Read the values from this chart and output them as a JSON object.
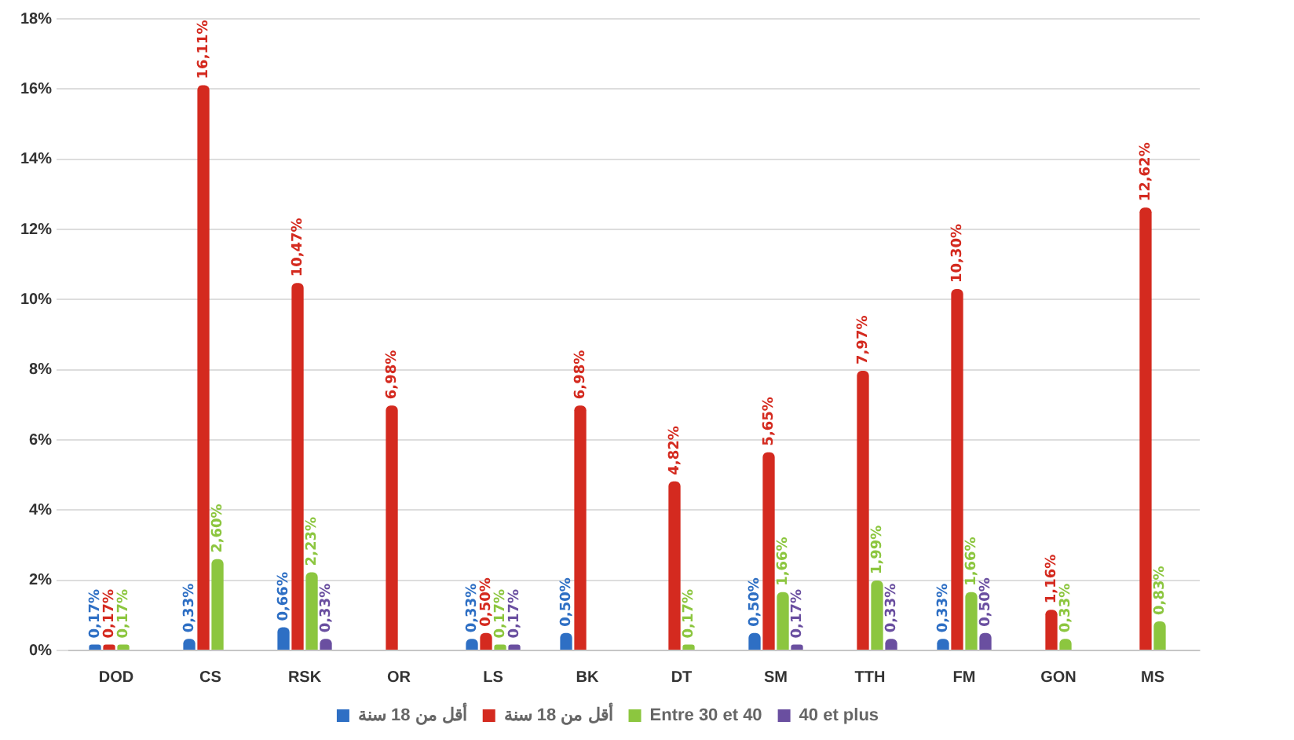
{
  "chart_data": {
    "type": "bar",
    "categories": [
      "DOD",
      "CS",
      "RSK",
      "OR",
      "LS",
      "BK",
      "DT",
      "SM",
      "TTH",
      "FM",
      "GON",
      "MS"
    ],
    "series": [
      {
        "name": "أقل من 18 سنة",
        "color": "#2e6fc4",
        "values": [
          0.17,
          0.33,
          0.66,
          null,
          0.33,
          0.5,
          null,
          0.5,
          null,
          0.33,
          null,
          null
        ],
        "value_labels": [
          "0,17%",
          "0,33%",
          "0,66%",
          null,
          "0,33%",
          "0,50%",
          null,
          "0,50%",
          null,
          "0,33%",
          null,
          null
        ]
      },
      {
        "name": "أقل من 18 سنة",
        "color": "#d42a1f",
        "values": [
          0.17,
          16.11,
          10.47,
          6.98,
          0.5,
          6.98,
          4.82,
          5.65,
          7.97,
          10.3,
          1.16,
          12.62
        ],
        "value_labels": [
          "0,17%",
          "16,11%",
          "10,47%",
          "6,98%",
          "0,50%",
          "6,98%",
          "4,82%",
          "5,65%",
          "7,97%",
          "10,30%",
          "1,16%",
          "12,62%"
        ]
      },
      {
        "name": "Entre 30 et 40",
        "color": "#8cc63f",
        "values": [
          0.17,
          2.6,
          2.23,
          null,
          0.17,
          null,
          0.17,
          1.66,
          1.99,
          1.66,
          0.33,
          0.83
        ],
        "value_labels": [
          "0,17%",
          "2,60%",
          "2,23%",
          null,
          "0,17%",
          null,
          "0,17%",
          "1,66%",
          "1,99%",
          "1,66%",
          "0,33%",
          "0,83%"
        ]
      },
      {
        "name": "40 et plus",
        "color": "#6a4fa0",
        "values": [
          null,
          null,
          0.33,
          null,
          0.17,
          null,
          null,
          0.17,
          0.33,
          0.5,
          null,
          null
        ],
        "value_labels": [
          null,
          null,
          "0,33%",
          null,
          "0,17%",
          null,
          null,
          "0,17%",
          "0,33%",
          "0,50%",
          null,
          null
        ]
      }
    ],
    "ylim": [
      0,
      18
    ],
    "yticks": [
      {
        "value": 0,
        "label": "0%"
      },
      {
        "value": 2,
        "label": "2%"
      },
      {
        "value": 4,
        "label": "4%"
      },
      {
        "value": 6,
        "label": "6%"
      },
      {
        "value": 8,
        "label": "8%"
      },
      {
        "value": 10,
        "label": "10%"
      },
      {
        "value": 12,
        "label": "12%"
      },
      {
        "value": 14,
        "label": "14%"
      },
      {
        "value": 16,
        "label": "16%"
      },
      {
        "value": 18,
        "label": "18%"
      }
    ],
    "grid": "y",
    "legend": "bottom"
  }
}
